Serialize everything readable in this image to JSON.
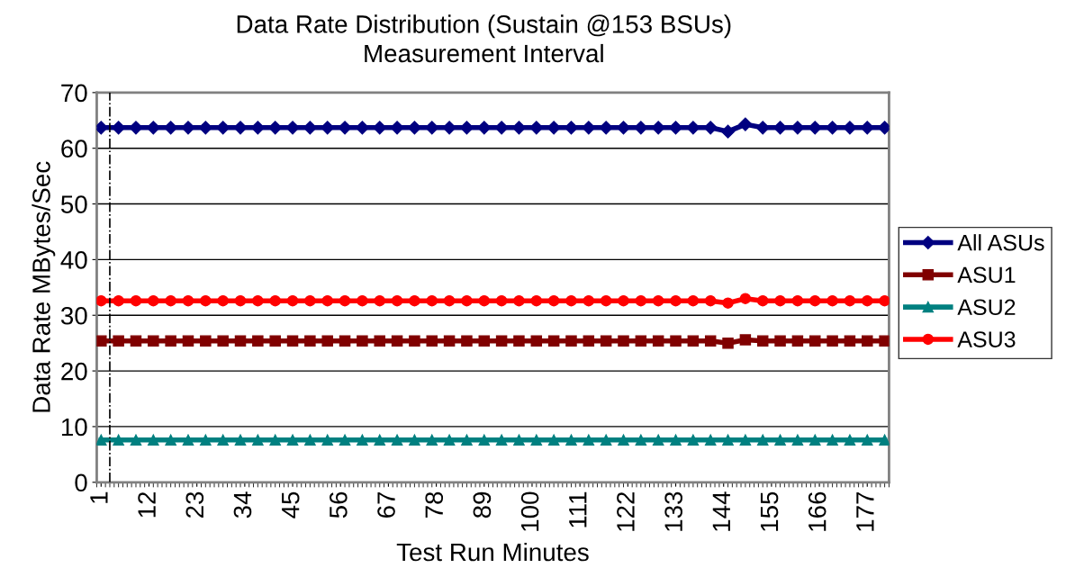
{
  "chart_data": {
    "type": "line",
    "title": "Data Rate Distribution (Sustain @153 BSUs)",
    "subtitle": "Measurement Interval",
    "xlabel": "Test Run Minutes",
    "ylabel": "Data Rate MBytes/Sec",
    "x": [
      1,
      5,
      9,
      13,
      17,
      21,
      25,
      29,
      33,
      37,
      41,
      45,
      49,
      53,
      57,
      61,
      65,
      69,
      73,
      77,
      81,
      85,
      89,
      93,
      97,
      101,
      105,
      109,
      113,
      117,
      121,
      125,
      129,
      133,
      137,
      141,
      145,
      149,
      153,
      157,
      161,
      165,
      169,
      173,
      177,
      181
    ],
    "series": [
      {
        "name": "All ASUs",
        "color": "#000080",
        "marker": "diamond",
        "values": [
          63.7,
          63.7,
          63.7,
          63.7,
          63.7,
          63.7,
          63.7,
          63.7,
          63.7,
          63.7,
          63.7,
          63.7,
          63.7,
          63.7,
          63.7,
          63.7,
          63.7,
          63.7,
          63.7,
          63.7,
          63.7,
          63.7,
          63.7,
          63.7,
          63.7,
          63.7,
          63.7,
          63.7,
          63.7,
          63.7,
          63.7,
          63.7,
          63.7,
          63.7,
          63.7,
          63.7,
          63.0,
          64.3,
          63.7,
          63.7,
          63.7,
          63.7,
          63.7,
          63.7,
          63.7,
          63.7
        ]
      },
      {
        "name": "ASU1",
        "color": "#800000",
        "marker": "square",
        "values": [
          25.4,
          25.4,
          25.4,
          25.4,
          25.4,
          25.4,
          25.4,
          25.4,
          25.4,
          25.4,
          25.4,
          25.4,
          25.4,
          25.4,
          25.4,
          25.4,
          25.4,
          25.4,
          25.4,
          25.4,
          25.4,
          25.4,
          25.4,
          25.4,
          25.4,
          25.4,
          25.4,
          25.4,
          25.4,
          25.4,
          25.4,
          25.4,
          25.4,
          25.4,
          25.4,
          25.4,
          25.0,
          25.6,
          25.4,
          25.4,
          25.4,
          25.4,
          25.4,
          25.4,
          25.4,
          25.4
        ]
      },
      {
        "name": "ASU2",
        "color": "#008080",
        "marker": "triangle",
        "values": [
          7.6,
          7.6,
          7.6,
          7.6,
          7.6,
          7.6,
          7.6,
          7.6,
          7.6,
          7.6,
          7.6,
          7.6,
          7.6,
          7.6,
          7.6,
          7.6,
          7.6,
          7.6,
          7.6,
          7.6,
          7.6,
          7.6,
          7.6,
          7.6,
          7.6,
          7.6,
          7.6,
          7.6,
          7.6,
          7.6,
          7.6,
          7.6,
          7.6,
          7.6,
          7.6,
          7.6,
          7.6,
          7.6,
          7.6,
          7.6,
          7.6,
          7.6,
          7.6,
          7.6,
          7.6,
          7.6
        ]
      },
      {
        "name": "ASU3",
        "color": "#ff0000",
        "marker": "circle",
        "values": [
          32.6,
          32.6,
          32.6,
          32.6,
          32.6,
          32.6,
          32.6,
          32.6,
          32.6,
          32.6,
          32.6,
          32.6,
          32.6,
          32.6,
          32.6,
          32.6,
          32.6,
          32.6,
          32.6,
          32.6,
          32.6,
          32.6,
          32.6,
          32.6,
          32.6,
          32.6,
          32.6,
          32.6,
          32.6,
          32.6,
          32.6,
          32.6,
          32.6,
          32.6,
          32.6,
          32.6,
          32.2,
          33.0,
          32.6,
          32.6,
          32.6,
          32.6,
          32.6,
          32.6,
          32.6,
          32.6
        ]
      }
    ],
    "xlim": [
      0,
      182
    ],
    "xticks": [
      1,
      12,
      23,
      34,
      45,
      56,
      67,
      78,
      89,
      100,
      111,
      122,
      133,
      144,
      155,
      166,
      177
    ],
    "ylim": [
      0,
      70
    ],
    "yticks": [
      0,
      10,
      20,
      30,
      40,
      50,
      60,
      70
    ],
    "ref_lines": [
      {
        "axis": "x",
        "value": 3,
        "color": "#000000",
        "line_style": "dashdot"
      }
    ],
    "grid": "y",
    "legend": "right"
  }
}
